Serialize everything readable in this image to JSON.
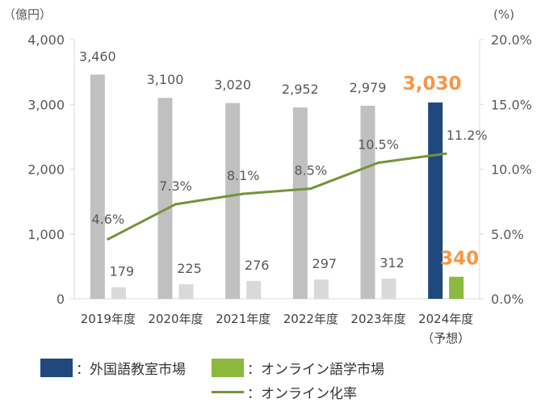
{
  "chart_data": {
    "type": "bar",
    "categories": [
      "2019年度",
      "2020年度",
      "2021年度",
      "2022年度",
      "2023年度",
      "2024年度"
    ],
    "category_note": "（予想）",
    "y_left": {
      "unit_label": "（億円）",
      "ylim": [
        0,
        4000
      ],
      "ticks": [
        "0",
        "1,000",
        "2,000",
        "3,000",
        "4,000"
      ]
    },
    "y_right": {
      "unit_label": "(%)",
      "ylim": [
        0,
        20
      ],
      "ticks": [
        "0.0%",
        "5.0%",
        "10.0%",
        "15.0%",
        "20.0%"
      ]
    },
    "series": [
      {
        "name": "外国語教室市場",
        "values": [
          3460,
          3100,
          3020,
          2952,
          2979,
          3030
        ],
        "labels": [
          "3,460",
          "3,100",
          "3,020",
          "2,952",
          "2,979",
          "3,030"
        ]
      },
      {
        "name": "オンライン語学市場",
        "values": [
          179,
          225,
          276,
          297,
          312,
          340
        ],
        "labels": [
          "179",
          "225",
          "276",
          "297",
          "312",
          "340"
        ]
      },
      {
        "name": "オンライン化率",
        "axis": "right",
        "type": "line",
        "values": [
          4.6,
          7.3,
          8.1,
          8.5,
          10.5,
          11.2
        ],
        "labels": [
          "4.6%",
          "7.3%",
          "8.1%",
          "8.5%",
          "10.5%",
          "11.2%"
        ]
      }
    ],
    "colors": {
      "classroom_past": "#c0c0c0",
      "online_past": "#d9d9d9",
      "classroom_forecast": "#1f497d",
      "online_forecast": "#8bba3f",
      "rate_line": "#76923c",
      "highlight_label": "#f79646",
      "axis": "#d9d9d9",
      "text": "#595959"
    }
  },
  "legend": {
    "items": [
      {
        "label": "：外国語教室市場",
        "color": "#1f497d"
      },
      {
        "label": "：オンライン語学市場",
        "color": "#8bba3f"
      },
      {
        "label": "：オンライン化率",
        "color": "#76923c"
      }
    ]
  }
}
